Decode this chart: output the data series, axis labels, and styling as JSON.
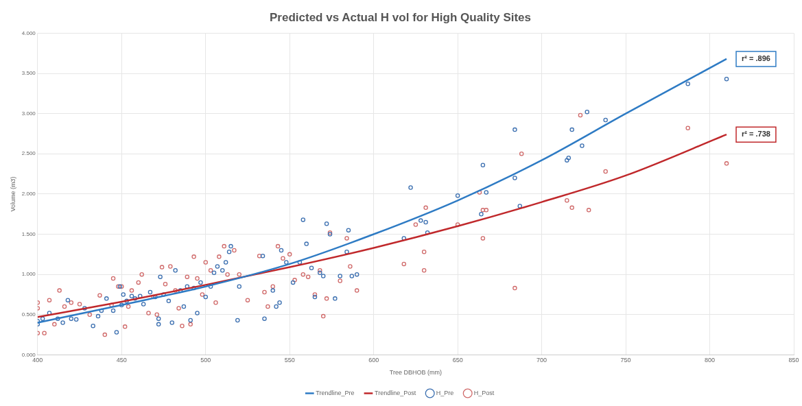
{
  "chart_data": {
    "type": "scatter",
    "title": "Predicted vs Actual H vol for High Quality Sites",
    "xlabel": "Tree DBHOB (mm)",
    "ylabel": "Volume (m3)",
    "xlim": [
      400,
      850
    ],
    "xticks": [
      400,
      450,
      500,
      550,
      600,
      650,
      700,
      750,
      800,
      850
    ],
    "ylim": [
      0,
      4
    ],
    "yticks": [
      {
        "value": 0,
        "label": "0.000"
      },
      {
        "value": 0.5,
        "label": "0.500"
      },
      {
        "value": 1,
        "label": "1.000"
      },
      {
        "value": 1.5,
        "label": "1.500"
      },
      {
        "value": 2,
        "label": "2.000"
      },
      {
        "value": 2.5,
        "label": "2.500"
      },
      {
        "value": 3,
        "label": "3.000"
      },
      {
        "value": 3.5,
        "label": "3.500"
      },
      {
        "value": 4,
        "label": "4.000"
      }
    ],
    "grid": true,
    "legend": "bottom",
    "marker": "circle",
    "series": [
      {
        "name": "H_Pre",
        "color": "#3b6fb0",
        "x": [
          400,
          400,
          403,
          407,
          412,
          415,
          418,
          420,
          423,
          428,
          433,
          436,
          438,
          441,
          445,
          447,
          449,
          450,
          451,
          453,
          456,
          458,
          461,
          463,
          467,
          470,
          472,
          472,
          473,
          475,
          478,
          480,
          482,
          485,
          487,
          489,
          491,
          493,
          495,
          497,
          500,
          503,
          505,
          507,
          510,
          512,
          514,
          515,
          519,
          520,
          534,
          535,
          540,
          542,
          544,
          545,
          548,
          552,
          556,
          558,
          560,
          563,
          565,
          568,
          570,
          572,
          574,
          577,
          580,
          584,
          585,
          587,
          590,
          618,
          622,
          628,
          631,
          632,
          650,
          664,
          665,
          667,
          684,
          684,
          687,
          715,
          716,
          718,
          724,
          727,
          738,
          787,
          810
        ],
        "values": [
          0.38,
          0.42,
          0.45,
          0.52,
          0.45,
          0.4,
          0.68,
          0.45,
          0.44,
          0.58,
          0.36,
          0.48,
          0.55,
          0.7,
          0.55,
          0.28,
          0.85,
          0.62,
          0.75,
          0.67,
          0.73,
          0.7,
          0.73,
          0.63,
          0.78,
          0.72,
          0.45,
          0.38,
          0.97,
          0.75,
          0.67,
          0.4,
          1.05,
          0.8,
          0.6,
          0.85,
          0.43,
          0.83,
          0.52,
          0.9,
          0.72,
          0.85,
          1.02,
          1.1,
          1.05,
          1.15,
          1.28,
          1.35,
          0.43,
          0.85,
          1.23,
          0.45,
          0.8,
          0.6,
          0.65,
          1.3,
          1.15,
          0.9,
          1.15,
          1.68,
          1.38,
          1.08,
          0.72,
          1.02,
          0.98,
          1.63,
          1.5,
          0.7,
          0.98,
          1.28,
          1.55,
          0.98,
          1.0,
          1.45,
          2.08,
          1.67,
          1.65,
          1.52,
          1.98,
          1.75,
          2.36,
          2.02,
          2.2,
          2.8,
          1.85,
          2.42,
          2.45,
          2.8,
          2.6,
          3.02,
          2.92,
          3.37,
          3.43
        ]
      },
      {
        "name": "H_Post",
        "color": "#d06a6a",
        "x": [
          400,
          400,
          400,
          404,
          407,
          410,
          413,
          416,
          420,
          425,
          431,
          437,
          440,
          444,
          445,
          448,
          450,
          452,
          454,
          456,
          460,
          462,
          466,
          469,
          471,
          474,
          476,
          479,
          482,
          484,
          486,
          489,
          491,
          493,
          495,
          498,
          500,
          503,
          506,
          508,
          511,
          513,
          517,
          520,
          525,
          532,
          535,
          537,
          540,
          543,
          546,
          550,
          553,
          558,
          561,
          565,
          568,
          570,
          572,
          574,
          580,
          584,
          586,
          590,
          618,
          625,
          630,
          630,
          631,
          650,
          663,
          665,
          665,
          667,
          684,
          688,
          715,
          718,
          723,
          728,
          738,
          787,
          810
        ],
        "values": [
          0.65,
          0.58,
          0.27,
          0.27,
          0.68,
          0.38,
          0.8,
          0.6,
          0.65,
          0.63,
          0.5,
          0.74,
          0.25,
          0.62,
          0.95,
          0.85,
          0.85,
          0.35,
          0.6,
          0.8,
          0.9,
          1.0,
          0.52,
          0.72,
          0.5,
          1.09,
          0.88,
          1.1,
          0.8,
          0.58,
          0.36,
          0.97,
          0.38,
          1.22,
          0.95,
          0.75,
          1.15,
          1.05,
          0.65,
          1.22,
          1.35,
          1.0,
          1.3,
          1.0,
          0.68,
          1.23,
          0.78,
          0.6,
          0.85,
          1.35,
          1.2,
          1.25,
          0.93,
          1.0,
          0.97,
          0.75,
          1.05,
          0.48,
          0.7,
          1.52,
          0.92,
          1.45,
          1.1,
          0.8,
          1.13,
          1.62,
          1.05,
          1.28,
          1.83,
          1.62,
          2.02,
          1.8,
          1.45,
          1.8,
          0.83,
          2.5,
          1.92,
          1.83,
          2.98,
          1.8,
          2.28,
          2.82,
          2.38
        ]
      },
      {
        "name": "Trendline_Pre",
        "type": "line",
        "marker": "none",
        "color": "#2e7bc4",
        "x": [
          400,
          450,
          500,
          550,
          600,
          650,
          700,
          750,
          810
        ],
        "values": [
          0.4,
          0.62,
          0.85,
          1.13,
          1.5,
          1.92,
          2.42,
          3.0,
          3.68
        ]
      },
      {
        "name": "Trendline_Post",
        "type": "line",
        "marker": "none",
        "color": "#c0282b",
        "x": [
          400,
          450,
          500,
          550,
          600,
          650,
          700,
          750,
          810
        ],
        "values": [
          0.47,
          0.66,
          0.87,
          1.09,
          1.33,
          1.6,
          1.9,
          2.23,
          2.74
        ]
      }
    ],
    "annotations": [
      {
        "text": "r² = .896",
        "x": 810,
        "y": 3.68
      },
      {
        "text": "r² = .738",
        "x": 810,
        "y": 2.74
      }
    ]
  }
}
